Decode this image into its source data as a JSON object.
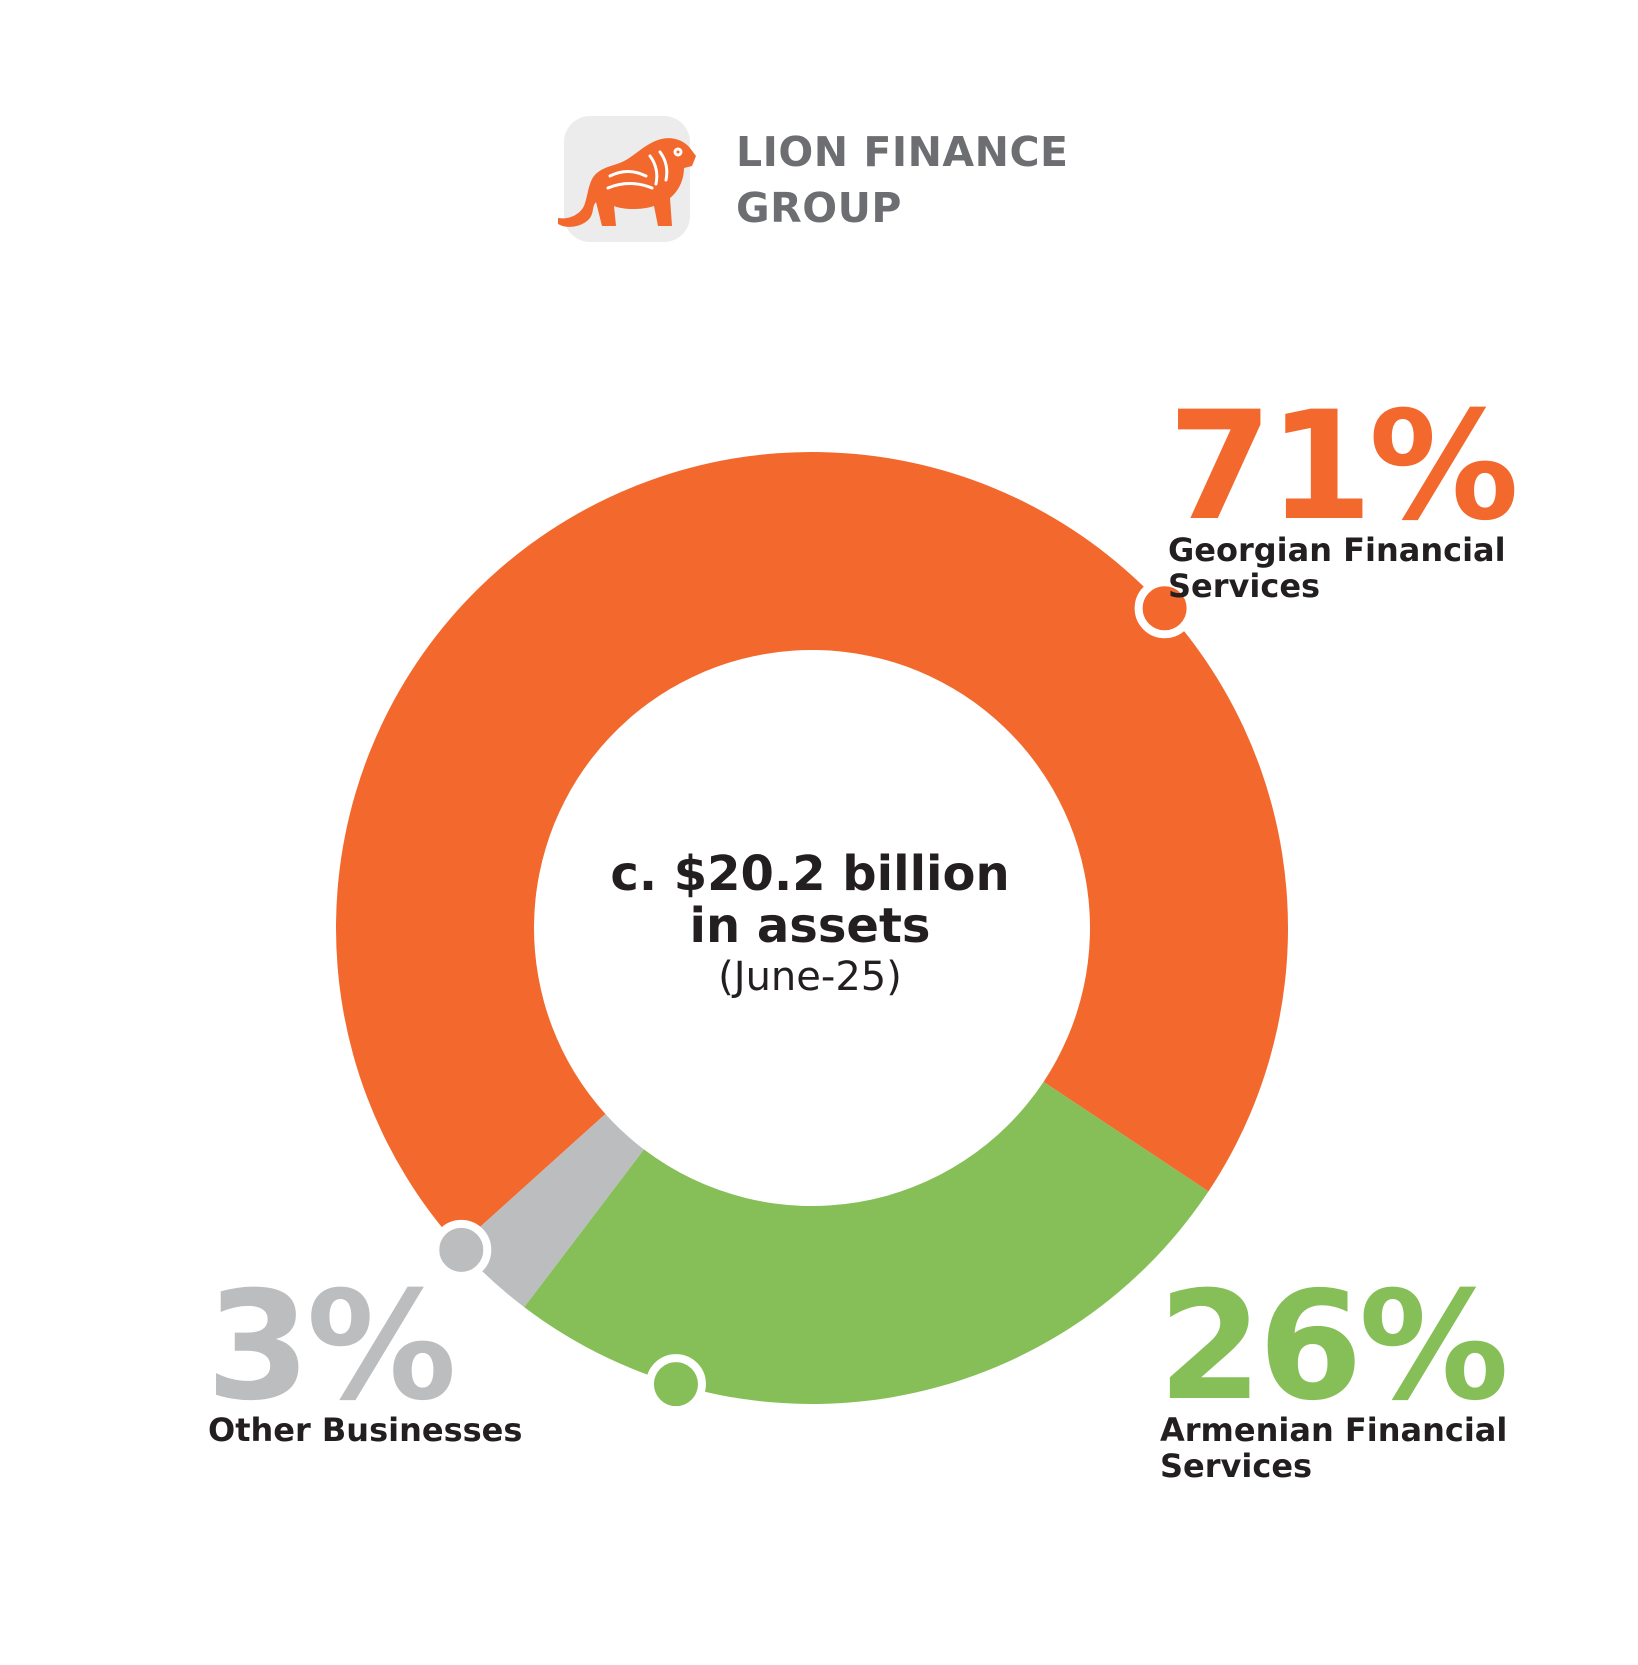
{
  "brand": {
    "name_line1": "LION FINANCE",
    "name_line2": "GROUP",
    "logo_icon": "lion-icon",
    "logo_color": "#f2682d"
  },
  "chart_data": {
    "type": "pie",
    "style": "donut",
    "center_label": {
      "line1": "c. $20.2 billion",
      "line2": "in assets",
      "line3": "(June-25)"
    },
    "slices": [
      {
        "label_line1": "Georgian Financial",
        "label_line2": "Services",
        "value": 71,
        "value_label": "71%",
        "color": "#f2682d"
      },
      {
        "label_line1": "Armenian Financial",
        "label_line2": "Services",
        "value": 26,
        "value_label": "26%",
        "color": "#86bf58"
      },
      {
        "label_line1": "Other Businesses",
        "label_line2": "",
        "value": 3,
        "value_label": "3%",
        "color": "#bcbdbf"
      }
    ],
    "legend": "none"
  }
}
